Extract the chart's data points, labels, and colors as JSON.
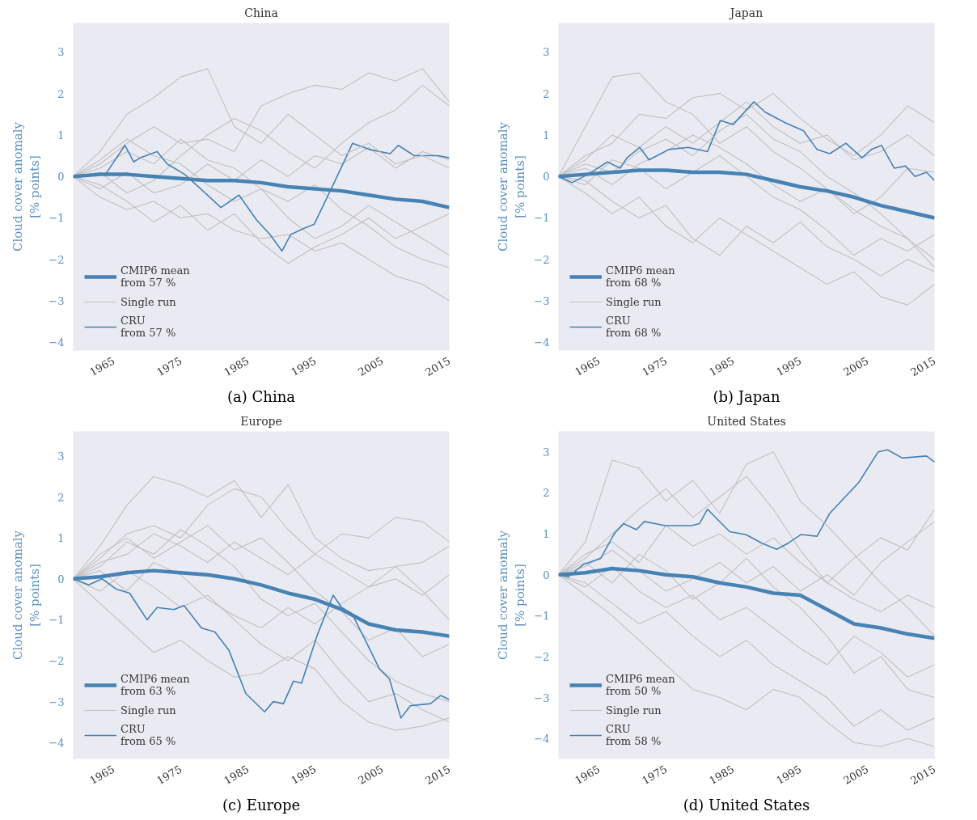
{
  "chart_data": [
    {
      "type": "line",
      "title": "China",
      "ylabel": "Cloud cover anomaly\n[% points]",
      "annotations": [
        "(a) China"
      ],
      "grid": false,
      "legend": "bottom left",
      "x": [
        1959,
        1963,
        1967,
        1971,
        1975,
        1979,
        1983,
        1987,
        1991,
        1995,
        1999,
        2003,
        2007,
        2011,
        2015
      ],
      "xlim": [
        1959,
        2015
      ],
      "xticks": [
        1965,
        1975,
        1985,
        1995,
        2005,
        2015
      ],
      "ylim": [
        -4.2,
        3.7
      ],
      "yticks": [
        -4,
        -3,
        -2,
        -1,
        0,
        1,
        2,
        3
      ],
      "series": [
        {
          "name": "CMIP6 mean\nfrom 57 %",
          "color": "#4682b4",
          "values": [
            0,
            0.05,
            0.05,
            0,
            -0.05,
            -0.1,
            -0.1,
            -0.15,
            -0.25,
            -0.3,
            -0.35,
            -0.45,
            -0.55,
            -0.6,
            -0.75
          ]
        },
        {
          "name": "Single run",
          "color": "#c0c0c0",
          "values": [
            0,
            0.6,
            1.5,
            1.9,
            2.4,
            2.6,
            1.2,
            0.8,
            1.5,
            1.0,
            0.5,
            0.8,
            0.3,
            0.5,
            0.2
          ]
        },
        {
          "name": "CRU\nfrom 57 %",
          "color": "#4682b4",
          "x": [
            1959,
            1963.8,
            1966.7,
            1968,
            1969,
            1971.5,
            1973,
            1975.6,
            1978,
            1981,
            1983.7,
            1986.3,
            1988.3,
            1990.1,
            1991.4,
            1993.4,
            1994.9,
            1998,
            2000.6,
            2003.1,
            2006.2,
            2007.4,
            2009.8,
            2013.3,
            2015
          ],
          "values": [
            0,
            0.05,
            0.75,
            0.35,
            0.45,
            0.6,
            0.3,
            0.05,
            -0.3,
            -0.75,
            -0.45,
            -1.05,
            -1.4,
            -1.8,
            -1.4,
            -1.25,
            -1.15,
            -0.1,
            0.8,
            0.65,
            0.55,
            0.75,
            0.5,
            0.5,
            0.45
          ]
        },
        {
          "color": "#c0c0c0",
          "values": [
            0,
            0.3,
            0.8,
            1.2,
            0.8,
            0.9,
            0.6,
            1.7,
            2.0,
            2.2,
            2.1,
            2.5,
            2.3,
            2.6,
            1.8
          ]
        },
        {
          "color": "#c0c0c0",
          "values": [
            0,
            -0.5,
            -0.8,
            -0.6,
            -1.0,
            -0.9,
            -1.3,
            -1.5,
            -1.4,
            -1.8,
            -1.6,
            -2.0,
            -2.4,
            -2.6,
            -3.0
          ]
        },
        {
          "color": "#c0c0c0",
          "values": [
            0,
            0.2,
            0.6,
            0.3,
            0.9,
            0.4,
            0.2,
            -0.3,
            -0.6,
            -0.2,
            -0.8,
            -1.2,
            -1.7,
            -2.0,
            -2.2
          ]
        },
        {
          "color": "#c0c0c0",
          "values": [
            0,
            -0.3,
            0.1,
            -0.4,
            -0.2,
            0.3,
            -0.1,
            0.4,
            0.0,
            0.5,
            0.3,
            0.7,
            0.2,
            0.6,
            0.4
          ]
        },
        {
          "color": "#c0c0c0",
          "values": [
            0,
            0.4,
            0.9,
            0.5,
            0.3,
            -0.2,
            -0.6,
            -0.3,
            -1.0,
            -1.5,
            -1.2,
            -0.7,
            -1.1,
            -1.5,
            -1.9
          ]
        },
        {
          "color": "#c0c0c0",
          "values": [
            0,
            0.1,
            -0.4,
            -0.1,
            0.5,
            1.0,
            1.4,
            1.1,
            0.6,
            0.2,
            0.8,
            1.3,
            1.6,
            2.2,
            1.7
          ]
        },
        {
          "color": "#c0c0c0",
          "values": [
            0,
            -0.2,
            -0.6,
            -1.1,
            -0.7,
            -1.3,
            -0.9,
            -1.6,
            -2.1,
            -1.7,
            -1.4,
            -1.0,
            -1.5,
            -1.2,
            -0.9
          ]
        }
      ]
    },
    {
      "type": "line",
      "title": "Japan",
      "ylabel": "Cloud cover anomaly\n[% points]",
      "annotations": [
        "(b) Japan"
      ],
      "grid": false,
      "legend": "bottom left",
      "x": [
        1959,
        1963,
        1967,
        1971,
        1975,
        1979,
        1983,
        1987,
        1991,
        1995,
        1999,
        2003,
        2007,
        2011,
        2015
      ],
      "xlim": [
        1959,
        2015
      ],
      "xticks": [
        1965,
        1975,
        1985,
        1995,
        2005,
        2015
      ],
      "ylim": [
        -4.2,
        3.7
      ],
      "yticks": [
        -4,
        -3,
        -2,
        -1,
        0,
        1,
        2,
        3
      ],
      "series": [
        {
          "name": "CMIP6 mean\nfrom 68 %",
          "color": "#4682b4",
          "values": [
            0,
            0.05,
            0.1,
            0.15,
            0.15,
            0.1,
            0.1,
            0.05,
            -0.1,
            -0.25,
            -0.35,
            -0.5,
            -0.7,
            -0.85,
            -1.0
          ]
        },
        {
          "name": "Single run",
          "color": "#c0c0c0",
          "values": [
            0,
            1.2,
            2.4,
            2.5,
            1.8,
            1.5,
            0.8,
            1.2,
            0.6,
            0.2,
            -0.3,
            -0.8,
            -1.2,
            -1.5,
            -2.0
          ]
        },
        {
          "name": "CRU\nfrom 68 %",
          "color": "#4682b4",
          "x": [
            1959,
            1961,
            1963.4,
            1966.3,
            1968.2,
            1969.2,
            1971.1,
            1972.5,
            1975.4,
            1978.3,
            1981.2,
            1983.1,
            1985,
            1988.1,
            1989.8,
            1992.7,
            1995.5,
            1997.5,
            1999.4,
            2001.8,
            2004.2,
            2005.6,
            2007.1,
            2009,
            2010.7,
            2012.1,
            2013.8,
            2015
          ],
          "values": [
            0,
            -0.15,
            0.05,
            0.35,
            0.2,
            0.45,
            0.7,
            0.4,
            0.65,
            0.7,
            0.6,
            1.35,
            1.25,
            1.8,
            1.55,
            1.3,
            1.1,
            0.65,
            0.55,
            0.8,
            0.45,
            0.65,
            0.75,
            0.2,
            0.25,
            0.0,
            0.1,
            -0.1
          ]
        },
        {
          "color": "#c0c0c0",
          "values": [
            0,
            0.5,
            0.8,
            1.5,
            1.4,
            1.9,
            2.0,
            1.6,
            2.0,
            1.4,
            0.9,
            0.5,
            1.0,
            1.7,
            1.3
          ]
        },
        {
          "color": "#c0c0c0",
          "values": [
            0,
            -0.4,
            -0.9,
            -0.5,
            -1.2,
            -1.6,
            -1.0,
            -1.4,
            -1.8,
            -2.2,
            -2.6,
            -2.3,
            -2.9,
            -3.1,
            -2.6
          ]
        },
        {
          "color": "#c0c0c0",
          "values": [
            0,
            0.3,
            0.1,
            0.6,
            0.9,
            0.5,
            1.1,
            1.5,
            0.9,
            0.6,
            0.0,
            -0.4,
            -0.9,
            -1.5,
            -2.2
          ]
        },
        {
          "color": "#c0c0c0",
          "values": [
            0,
            -0.2,
            0.4,
            0.2,
            -0.3,
            0.1,
            0.5,
            0.0,
            -0.5,
            -0.8,
            -1.3,
            -1.9,
            -1.5,
            -1.8,
            -1.4
          ]
        },
        {
          "color": "#c0c0c0",
          "values": [
            0,
            0.2,
            -0.2,
            0.3,
            0.6,
            1.0,
            0.7,
            0.3,
            -0.2,
            -0.6,
            -0.3,
            -0.9,
            -0.5,
            0.2,
            0.1
          ]
        },
        {
          "color": "#c0c0c0",
          "values": [
            0,
            -0.1,
            -0.6,
            -1.0,
            -0.7,
            -1.5,
            -1.9,
            -1.2,
            -1.6,
            -1.1,
            -1.7,
            -2.0,
            -2.4,
            -2.0,
            -2.3
          ]
        },
        {
          "color": "#c0c0c0",
          "values": [
            0,
            0.4,
            1.0,
            0.7,
            1.2,
            0.8,
            1.3,
            1.8,
            1.2,
            0.8,
            1.0,
            0.4,
            0.6,
            1.0,
            0.5
          ]
        }
      ]
    },
    {
      "type": "line",
      "title": "Europe",
      "ylabel": "Cloud cover anomaly\n[% points]",
      "annotations": [
        "(c) Europe"
      ],
      "grid": false,
      "legend": "bottom left",
      "x": [
        1959,
        1963,
        1967,
        1971,
        1975,
        1979,
        1983,
        1987,
        1991,
        1995,
        1999,
        2003,
        2007,
        2011,
        2015
      ],
      "xlim": [
        1959,
        2015
      ],
      "xticks": [
        1965,
        1975,
        1985,
        1995,
        2005,
        2015
      ],
      "ylim": [
        -4.4,
        3.6
      ],
      "yticks": [
        -4,
        -3,
        -2,
        -1,
        0,
        1,
        2,
        3
      ],
      "series": [
        {
          "name": "CMIP6 mean\nfrom 63 %",
          "color": "#4682b4",
          "values": [
            0,
            0.05,
            0.15,
            0.2,
            0.15,
            0.1,
            0.0,
            -0.15,
            -0.35,
            -0.5,
            -0.75,
            -1.1,
            -1.25,
            -1.3,
            -1.4
          ]
        },
        {
          "name": "Single run",
          "color": "#c0c0c0",
          "values": [
            0,
            0.8,
            1.8,
            2.5,
            2.3,
            2.0,
            2.4,
            1.5,
            2.3,
            1.0,
            0.5,
            0.2,
            0.3,
            -0.3,
            -1.0
          ]
        },
        {
          "name": "CRU\nfrom 65 %",
          "color": "#4682b4",
          "x": [
            1959,
            1961.3,
            1963.3,
            1965.4,
            1967.4,
            1970,
            1971.5,
            1974,
            1975.5,
            1978.1,
            1980.1,
            1982.2,
            1984.7,
            1987.5,
            1988.8,
            1990.3,
            1991.8,
            1993,
            1995.4,
            1997.7,
            1999,
            2000.5,
            2002.5,
            2004.6,
            2006.1,
            2007.8,
            2009.2,
            2012.2,
            2013.7,
            2015
          ],
          "values": [
            0,
            -0.15,
            0.0,
            -0.25,
            -0.35,
            -1.0,
            -0.7,
            -0.75,
            -0.65,
            -1.2,
            -1.3,
            -1.75,
            -2.8,
            -3.25,
            -3.0,
            -3.05,
            -2.5,
            -2.55,
            -1.35,
            -0.4,
            -0.7,
            -0.85,
            -1.5,
            -2.2,
            -2.45,
            -3.4,
            -3.1,
            -3.05,
            -2.85,
            -2.95
          ]
        },
        {
          "color": "#c0c0c0",
          "values": [
            0,
            0.5,
            1.1,
            1.3,
            1.0,
            1.8,
            2.2,
            2.0,
            1.2,
            0.6,
            1.1,
            1.0,
            1.5,
            1.4,
            0.9
          ]
        },
        {
          "color": "#c0c0c0",
          "values": [
            0,
            -0.6,
            -1.2,
            -1.8,
            -1.5,
            -2.0,
            -2.4,
            -2.3,
            -1.9,
            -2.2,
            -3.0,
            -3.5,
            -3.7,
            -3.6,
            -3.4
          ]
        },
        {
          "color": "#c0c0c0",
          "values": [
            0,
            0.3,
            0.9,
            0.6,
            1.2,
            0.8,
            0.3,
            -0.5,
            -0.9,
            -0.6,
            -1.3,
            -2.0,
            -2.5,
            -2.8,
            -3.0
          ]
        },
        {
          "color": "#c0c0c0",
          "values": [
            0,
            0.2,
            -0.3,
            0.4,
            0.1,
            -0.5,
            -0.9,
            -1.2,
            -0.7,
            -1.1,
            -0.6,
            -0.2,
            0.3,
            0.4,
            0.8
          ]
        },
        {
          "color": "#c0c0c0",
          "values": [
            0,
            0.6,
            1.0,
            0.5,
            0.9,
            1.3,
            0.7,
            1.0,
            0.4,
            -0.3,
            -0.8,
            -1.5,
            -1.2,
            -1.9,
            -1.6
          ]
        },
        {
          "color": "#c0c0c0",
          "values": [
            0,
            -0.3,
            0.2,
            -0.2,
            -0.7,
            -0.4,
            -1.0,
            -1.6,
            -2.0,
            -1.5,
            -2.3,
            -3.0,
            -2.8,
            -3.2,
            -3.5
          ]
        },
        {
          "color": "#c0c0c0",
          "values": [
            0,
            0.4,
            0.6,
            1.1,
            0.8,
            0.4,
            0.9,
            0.5,
            0.1,
            0.6,
            0.2,
            -0.2,
            0.0,
            -0.4,
            0.1
          ]
        }
      ]
    },
    {
      "type": "line",
      "title": "United States",
      "ylabel": "Cloud cover anomaly\n[% points]",
      "annotations": [
        "(d) United States"
      ],
      "grid": false,
      "legend": "bottom left",
      "x": [
        1959,
        1963,
        1967,
        1971,
        1975,
        1979,
        1983,
        1987,
        1991,
        1995,
        1999,
        2003,
        2007,
        2011,
        2015
      ],
      "xlim": [
        1959,
        2015
      ],
      "xticks": [
        1965,
        1975,
        1985,
        1995,
        2005,
        2015
      ],
      "ylim": [
        -4.5,
        3.5
      ],
      "yticks": [
        -4,
        -3,
        -2,
        -1,
        0,
        1,
        2,
        3
      ],
      "series": [
        {
          "name": "CMIP6 mean\nfrom 50 %",
          "color": "#4682b4",
          "values": [
            0,
            0.05,
            0.15,
            0.1,
            0.0,
            -0.05,
            -0.2,
            -0.3,
            -0.45,
            -0.5,
            -0.85,
            -1.2,
            -1.3,
            -1.45,
            -1.55
          ]
        },
        {
          "name": "Single run",
          "color": "#c0c0c0",
          "values": [
            0,
            0.8,
            2.8,
            2.6,
            1.8,
            2.3,
            1.5,
            2.7,
            3.0,
            1.8,
            1.2,
            0.5,
            -0.2,
            -0.8,
            -1.5
          ]
        },
        {
          "name": "CRU\nfrom 58 %",
          "color": "#4682b4",
          "x": [
            1959,
            1960.5,
            1962.7,
            1965.3,
            1967.3,
            1968.7,
            1970.6,
            1971.8,
            1974.9,
            1978.8,
            1980,
            1981.2,
            1983.6,
            1984.5,
            1986.9,
            1989.3,
            1991.5,
            1993.2,
            1995.1,
            1997.5,
            1999.4,
            2003.7,
            2006.6,
            2008,
            2010.2,
            2013.8,
            2015
          ],
          "values": [
            0,
            -0.05,
            0.25,
            0.4,
            1.0,
            1.25,
            1.1,
            1.3,
            1.2,
            1.2,
            1.25,
            1.6,
            1.2,
            1.05,
            0.98,
            0.77,
            0.62,
            0.77,
            0.98,
            0.94,
            1.5,
            2.25,
            3.0,
            3.05,
            2.85,
            2.9,
            2.75
          ]
        },
        {
          "color": "#c0c0c0",
          "values": [
            0,
            0.4,
            1.0,
            1.6,
            2.1,
            1.4,
            1.9,
            2.4,
            1.6,
            0.6,
            -0.2,
            0.4,
            0.9,
            0.6,
            1.6
          ]
        },
        {
          "color": "#c0c0c0",
          "values": [
            0,
            -0.5,
            -1.0,
            -1.6,
            -2.2,
            -2.8,
            -3.0,
            -3.3,
            -2.8,
            -3.0,
            -3.6,
            -4.1,
            -4.2,
            -4.0,
            -4.2
          ]
        },
        {
          "color": "#c0c0c0",
          "values": [
            0,
            0.3,
            -0.2,
            0.5,
            0.1,
            -0.6,
            -0.2,
            0.4,
            -0.3,
            -0.8,
            -1.5,
            -2.4,
            -2.0,
            -2.8,
            -3.0
          ]
        },
        {
          "color": "#c0c0c0",
          "values": [
            0,
            0.5,
            0.8,
            0.3,
            1.2,
            0.7,
            1.0,
            0.5,
            0.9,
            0.3,
            -0.2,
            -0.6,
            -0.9,
            -0.5,
            -0.8
          ]
        },
        {
          "color": "#c0c0c0",
          "values": [
            0,
            -0.2,
            -0.7,
            -1.2,
            -0.9,
            -1.5,
            -2.0,
            -1.6,
            -2.2,
            -2.6,
            -3.0,
            -3.7,
            -3.3,
            -3.8,
            -3.5
          ]
        },
        {
          "color": "#c0c0c0",
          "values": [
            0,
            0.2,
            0.6,
            0.1,
            -0.4,
            -0.1,
            0.3,
            -0.2,
            0.2,
            -0.4,
            0.0,
            -0.5,
            0.3,
            0.8,
            1.3
          ]
        },
        {
          "color": "#c0c0c0",
          "values": [
            0,
            -0.3,
            0.2,
            -0.4,
            -0.8,
            -0.5,
            -1.1,
            -0.8,
            -1.3,
            -1.8,
            -2.2,
            -1.5,
            -1.9,
            -2.5,
            -2.2
          ]
        }
      ]
    }
  ]
}
